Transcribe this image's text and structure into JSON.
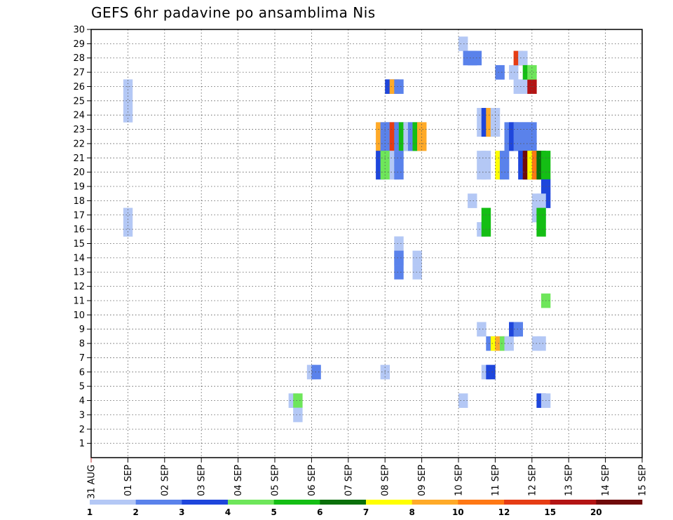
{
  "chart_data": {
    "type": "heatmap",
    "title": "GEFS 6hr padavine po ansamblima Nis",
    "xlabel": "",
    "ylabel": "",
    "x_tick_labels": [
      "31 AUG",
      "01 SEP",
      "02 SEP",
      "03 SEP",
      "04 SEP",
      "05 SEP",
      "06 SEP",
      "07 SEP",
      "08 SEP",
      "09 SEP",
      "10 SEP",
      "11 SEP",
      "12 SEP",
      "13 SEP",
      "14 SEP",
      "15 SEP"
    ],
    "y_tick_labels": [
      "1",
      "2",
      "3",
      "4",
      "5",
      "6",
      "7",
      "8",
      "9",
      "10",
      "11",
      "12",
      "13",
      "14",
      "15",
      "16",
      "17",
      "18",
      "19",
      "20",
      "21",
      "22",
      "23",
      "24",
      "25",
      "26",
      "27",
      "28",
      "29",
      "30"
    ],
    "xlim_days": [
      0,
      15
    ],
    "ylim": [
      0,
      30
    ],
    "x_step_hours": 6,
    "grid": true,
    "legend": {
      "placement": "bottom",
      "labels": [
        "1",
        "2",
        "3",
        "4",
        "5",
        "6",
        "7",
        "8",
        "10",
        "12",
        "15",
        "20"
      ],
      "colors": [
        "#b4c8f5",
        "#5a82eb",
        "#1e46dc",
        "#6ee65a",
        "#14be14",
        "#0a700a",
        "#ffff00",
        "#ffaa28",
        "#ff7814",
        "#e63c14",
        "#b41414",
        "#700a0a"
      ]
    },
    "cells": [
      {
        "t": 3.5,
        "m": [
          17,
          16
        ],
        "c": 0
      },
      {
        "t": 3.5,
        "m": [
          26,
          25,
          24
        ],
        "c": 0
      },
      {
        "t": 21.5,
        "m": [
          4
        ],
        "c": 0
      },
      {
        "t": 22,
        "m": [
          4
        ],
        "c": 3
      },
      {
        "t": 22,
        "m": [
          3
        ],
        "c": 0
      },
      {
        "t": 23.5,
        "m": [
          6
        ],
        "c": 0
      },
      {
        "t": 24,
        "m": [
          6
        ],
        "c": 1
      },
      {
        "t": 31,
        "m": [
          23,
          22
        ],
        "c": 7
      },
      {
        "t": 31.5,
        "m": [
          23,
          22
        ],
        "c": 1
      },
      {
        "t": 32,
        "m": [
          23,
          22
        ],
        "c": 1
      },
      {
        "t": 32.5,
        "m": [
          23,
          22
        ],
        "c": 9
      },
      {
        "t": 33,
        "m": [
          23,
          22
        ],
        "c": 1
      },
      {
        "t": 33.5,
        "m": [
          23,
          22
        ],
        "c": 4
      },
      {
        "t": 34,
        "m": [
          23,
          22
        ],
        "c": 0
      },
      {
        "t": 34.5,
        "m": [
          23,
          22
        ],
        "c": 1
      },
      {
        "t": 35,
        "m": [
          23,
          22
        ],
        "c": 4
      },
      {
        "t": 35.5,
        "m": [
          23,
          22
        ],
        "c": 7
      },
      {
        "t": 31,
        "m": [
          21,
          20
        ],
        "c": 2
      },
      {
        "t": 31.5,
        "m": [
          21,
          20
        ],
        "c": 3
      },
      {
        "t": 32.5,
        "m": [
          21,
          20
        ],
        "c": 0
      },
      {
        "t": 33,
        "m": [
          21,
          20
        ],
        "c": 1
      },
      {
        "t": 32,
        "m": [
          26
        ],
        "c": 2
      },
      {
        "t": 32.5,
        "m": [
          26
        ],
        "c": 7
      },
      {
        "t": 33,
        "m": [
          26
        ],
        "c": 1
      },
      {
        "t": 31.5,
        "m": [
          6
        ],
        "c": 0
      },
      {
        "t": 33,
        "m": [
          15,
          14
        ],
        "c": 0
      },
      {
        "t": 33,
        "m": [
          14,
          13
        ],
        "c": 1
      },
      {
        "t": 35,
        "m": [
          14,
          13
        ],
        "c": 0
      },
      {
        "t": 40,
        "m": [
          29
        ],
        "c": 0
      },
      {
        "t": 40.5,
        "m": [
          28
        ],
        "c": 1
      },
      {
        "t": 41,
        "m": [
          28
        ],
        "c": 1
      },
      {
        "t": 41.5,
        "m": [
          28
        ],
        "c": 1
      },
      {
        "t": 40,
        "m": [
          4
        ],
        "c": 0
      },
      {
        "t": 41,
        "m": [
          18
        ],
        "c": 0
      },
      {
        "t": 42,
        "m": [
          24,
          23
        ],
        "c": 0
      },
      {
        "t": 42.5,
        "m": [
          24,
          23
        ],
        "c": 2
      },
      {
        "t": 43,
        "m": [
          24,
          23
        ],
        "c": 7
      },
      {
        "t": 43.5,
        "m": [
          24,
          23
        ],
        "c": 0
      },
      {
        "t": 42,
        "m": [
          21,
          20
        ],
        "c": 0
      },
      {
        "t": 42.5,
        "m": [
          21,
          20
        ],
        "c": 0
      },
      {
        "t": 42,
        "m": [
          16
        ],
        "c": 0
      },
      {
        "t": 42.5,
        "m": [
          17,
          16
        ],
        "c": 4
      },
      {
        "t": 42,
        "m": [
          9
        ],
        "c": 0
      },
      {
        "t": 42.5,
        "m": [
          6
        ],
        "c": 0
      },
      {
        "t": 43,
        "m": [
          6
        ],
        "c": 2
      },
      {
        "t": 43,
        "m": [
          8
        ],
        "c": 1
      },
      {
        "t": 43.5,
        "m": [
          8
        ],
        "c": 6
      },
      {
        "t": 44,
        "m": [
          8
        ],
        "c": 7
      },
      {
        "t": 44.5,
        "m": [
          8
        ],
        "c": 3
      },
      {
        "t": 45,
        "m": [
          8
        ],
        "c": 0
      },
      {
        "t": 44,
        "m": [
          21,
          20
        ],
        "c": 6
      },
      {
        "t": 44.5,
        "m": [
          21,
          20
        ],
        "c": 1
      },
      {
        "t": 44,
        "m": [
          27
        ],
        "c": 1
      },
      {
        "t": 45,
        "m": [
          23,
          22
        ],
        "c": 1
      },
      {
        "t": 45.5,
        "m": [
          23,
          22
        ],
        "c": 2
      },
      {
        "t": 46,
        "m": [
          23,
          22
        ],
        "c": 1
      },
      {
        "t": 46.5,
        "m": [
          23,
          22
        ],
        "c": 1
      },
      {
        "t": 47,
        "m": [
          23,
          22
        ],
        "c": 1
      },
      {
        "t": 47.5,
        "m": [
          23,
          22
        ],
        "c": 1
      },
      {
        "t": 45.5,
        "m": [
          9
        ],
        "c": 2
      },
      {
        "t": 46,
        "m": [
          9
        ],
        "c": 1
      },
      {
        "t": 45.5,
        "m": [
          27
        ],
        "c": 0
      },
      {
        "t": 46,
        "m": [
          28
        ],
        "c": 9
      },
      {
        "t": 46.5,
        "m": [
          28
        ],
        "c": 0
      },
      {
        "t": 46,
        "m": [
          26
        ],
        "c": 0
      },
      {
        "t": 47,
        "m": [
          26
        ],
        "c": 0
      },
      {
        "t": 47.5,
        "m": [
          26
        ],
        "c": 10
      },
      {
        "t": 47,
        "m": [
          27
        ],
        "c": 4
      },
      {
        "t": 47.5,
        "m": [
          27
        ],
        "c": 3
      },
      {
        "t": 46.5,
        "m": [
          21,
          20
        ],
        "c": 2
      },
      {
        "t": 47,
        "m": [
          21,
          20
        ],
        "c": 11
      },
      {
        "t": 47.5,
        "m": [
          21,
          20
        ],
        "c": 6
      },
      {
        "t": 48,
        "m": [
          21,
          20
        ],
        "c": 8
      },
      {
        "t": 48.5,
        "m": [
          21,
          20
        ],
        "c": 5
      },
      {
        "t": 49,
        "m": [
          21,
          20
        ],
        "c": 4
      },
      {
        "t": 49,
        "m": [
          19,
          18
        ],
        "c": 2
      },
      {
        "t": 48,
        "m": [
          18,
          17
        ],
        "c": 0
      },
      {
        "t": 48.5,
        "m": [
          18,
          17
        ],
        "c": 0
      },
      {
        "t": 48.5,
        "m": [
          17,
          16
        ],
        "c": 4
      },
      {
        "t": 49,
        "m": [
          11
        ],
        "c": 3
      },
      {
        "t": 48,
        "m": [
          8
        ],
        "c": 0
      },
      {
        "t": 48.5,
        "m": [
          8
        ],
        "c": 0
      },
      {
        "t": 48.5,
        "m": [
          4
        ],
        "c": 2
      },
      {
        "t": 49,
        "m": [
          4
        ],
        "c": 0
      }
    ]
  }
}
